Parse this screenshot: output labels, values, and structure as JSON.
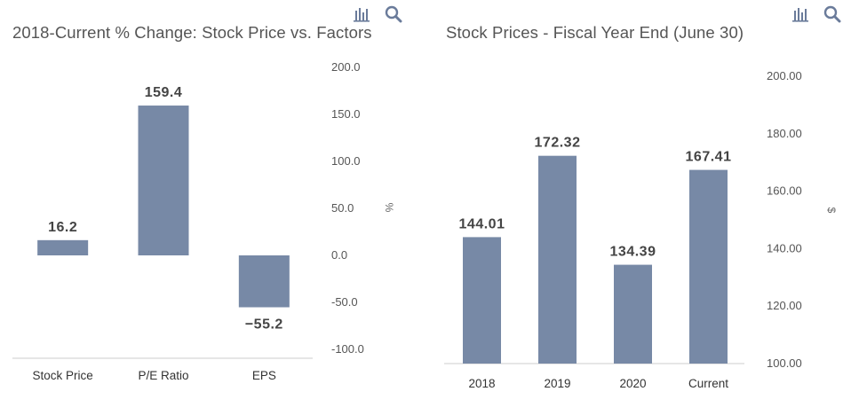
{
  "colors": {
    "bar": "#7789a6",
    "axis": "#cccccc",
    "text": "#555555",
    "icon": "#6a7b9a"
  },
  "icons": [
    "bar-chart-icon",
    "search-icon"
  ],
  "chart_data": [
    {
      "type": "bar",
      "title": "2018-Current % Change: Stock Price vs. Factors",
      "categories": [
        "Stock Price",
        "P/E Ratio",
        "EPS"
      ],
      "values": [
        16.2,
        159.4,
        -55.2
      ],
      "data_labels": [
        "16.2",
        "159.4",
        "−55.2"
      ],
      "ylim": [
        -100,
        200
      ],
      "yticks": [
        200,
        150,
        100,
        50,
        0,
        -50,
        -100
      ],
      "ytick_labels": [
        "200.0",
        "150.0",
        "100.0",
        "50.0",
        "0.0",
        "-50.0",
        "-100.0"
      ],
      "ylabel": "%",
      "xlabel": "",
      "grid": false,
      "yaxis_position": "right"
    },
    {
      "type": "bar",
      "title": "Stock Prices - Fiscal Year End (June 30)",
      "categories": [
        "2018",
        "2019",
        "2020",
        "Current"
      ],
      "values": [
        144.01,
        172.32,
        134.39,
        167.41
      ],
      "data_labels": [
        "144.01",
        "172.32",
        "134.39",
        "167.41"
      ],
      "ylim": [
        100,
        200
      ],
      "yticks": [
        200,
        180,
        160,
        140,
        120,
        100
      ],
      "ytick_labels": [
        "200.00",
        "180.00",
        "160.00",
        "140.00",
        "120.00",
        "100.00"
      ],
      "ylabel": "$",
      "xlabel": "",
      "grid": false,
      "yaxis_position": "right"
    }
  ]
}
